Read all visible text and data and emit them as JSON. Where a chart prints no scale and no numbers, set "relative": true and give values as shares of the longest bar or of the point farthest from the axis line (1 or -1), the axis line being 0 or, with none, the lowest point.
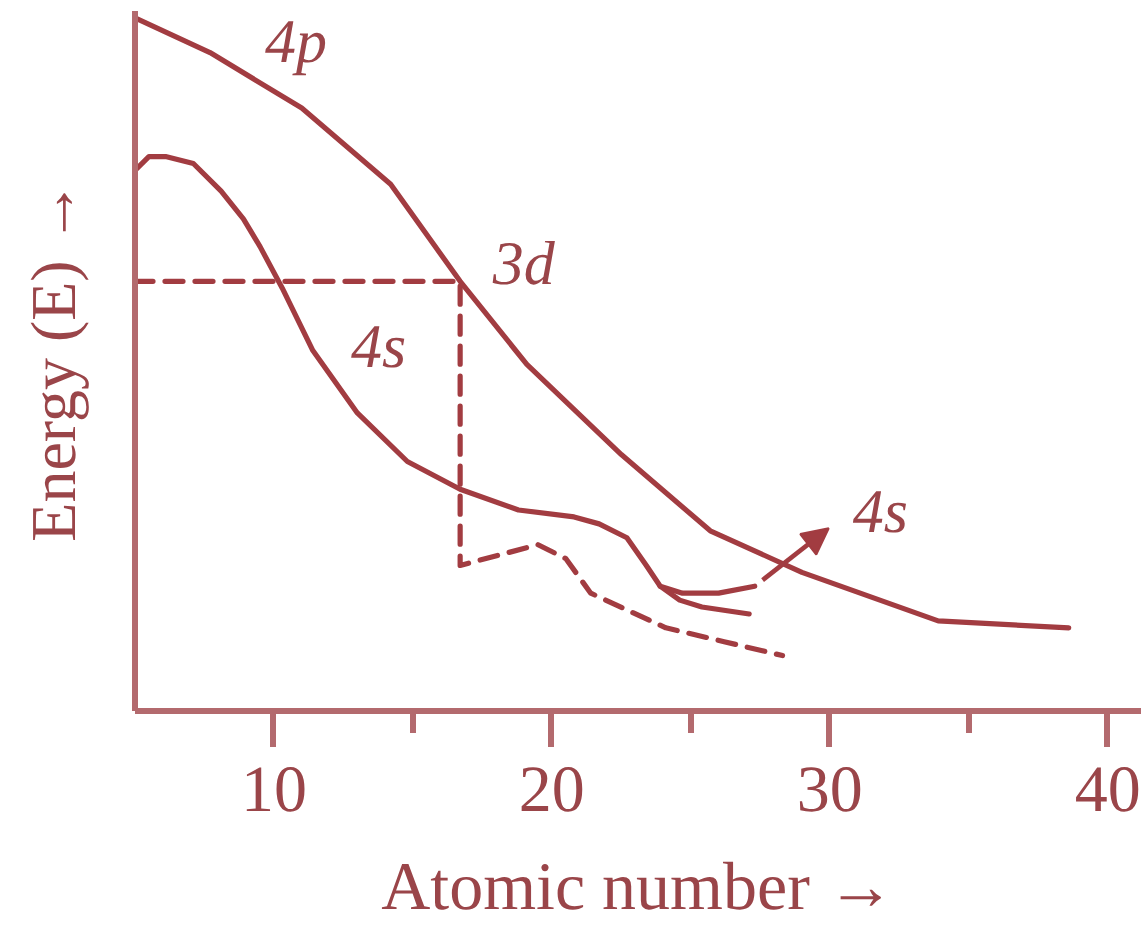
{
  "chart_data": {
    "type": "line",
    "relative": true,
    "xlabel": "Atomic number →",
    "ylabel": "Energy (E) →",
    "xlim": [
      5,
      41.2
    ],
    "xticks": [
      10,
      {
        "value": 15,
        "label": null
      },
      20,
      {
        "value": 25,
        "label": null
      },
      30,
      {
        "value": 35,
        "label": null
      },
      40
    ],
    "series": [
      {
        "color": "#a23c41",
        "x": [
          5.0,
          7.7,
          11.0,
          14.2,
          16.7,
          19.1,
          22.5,
          25.7,
          29.0,
          33.9,
          38.6
        ],
        "values": [
          1.0,
          0.95,
          0.87,
          0.76,
          0.62,
          0.5,
          0.37,
          0.26,
          0.2,
          0.13,
          0.12
        ]
      },
      {
        "color": "#a23c41",
        "x": [
          5.0,
          5.5,
          6.1,
          7.1,
          8.1,
          8.9,
          9.5,
          10.3,
          11.4,
          13.0,
          14.8,
          16.7,
          18.8,
          20.8,
          21.7,
          22.7,
          23.4,
          23.9,
          24.7,
          26.0,
          27.3
        ],
        "values": [
          0.78,
          0.8,
          0.8,
          0.79,
          0.75,
          0.71,
          0.67,
          0.61,
          0.52,
          0.43,
          0.36,
          0.32,
          0.29,
          0.28,
          0.27,
          0.25,
          0.21,
          0.18,
          0.17,
          0.17,
          0.18
        ]
      },
      {
        "color": "#a23c41",
        "x": [
          23.9,
          24.6,
          25.4,
          27.1
        ],
        "values": [
          0.18,
          0.16,
          0.15,
          0.14
        ]
      },
      {
        "color": "#a23c41",
        "line_style": "dashed",
        "x": [
          5.0,
          16.7,
          16.7,
          19.5,
          20.5,
          21.4,
          24.1,
          26.2,
          28.3
        ],
        "values": [
          0.62,
          0.62,
          0.21,
          0.24,
          0.22,
          0.17,
          0.12,
          0.1,
          0.08
        ]
      }
    ],
    "annotations": [
      {
        "text": "4p",
        "x": 9.1,
        "y": 0.91
      },
      {
        "text": "3d",
        "x": 17.3,
        "y": 0.59
      },
      {
        "text": "4s",
        "x": 12.2,
        "y": 0.47
      },
      {
        "text": "4s",
        "x": 27.3,
        "y": 0.18
      }
    ]
  }
}
